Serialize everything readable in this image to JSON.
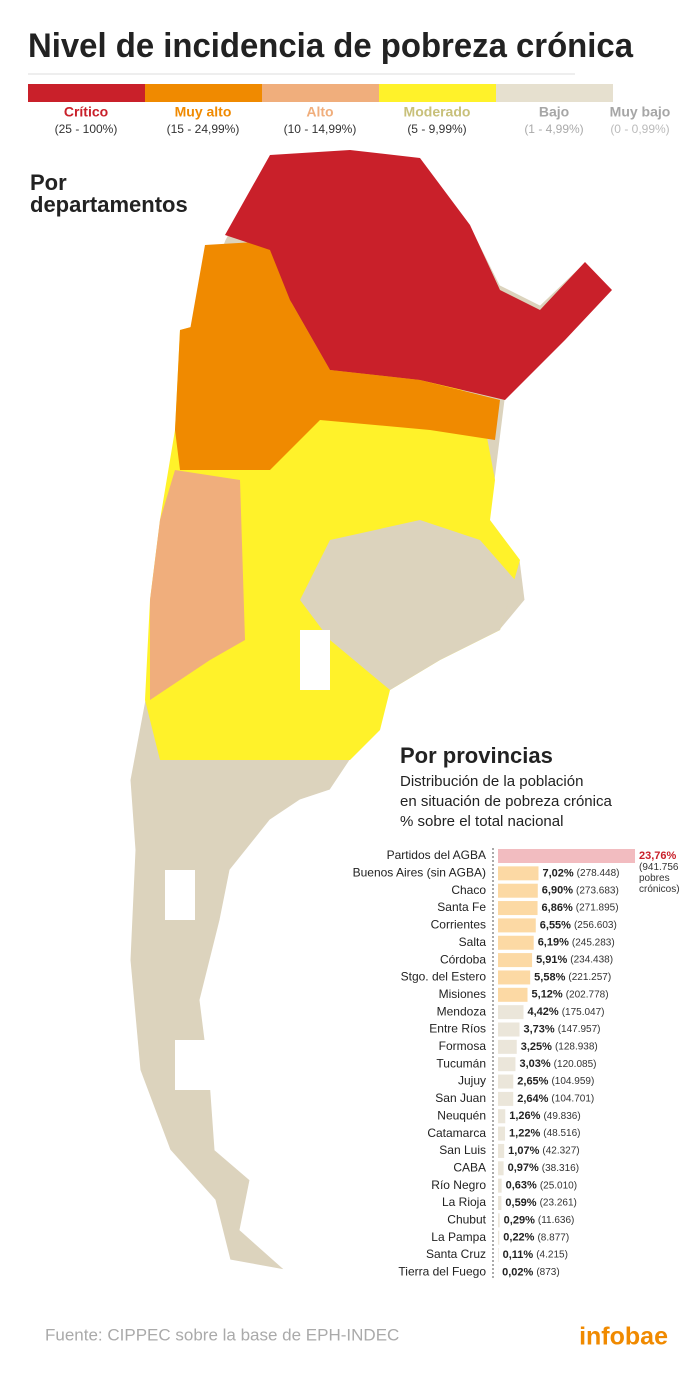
{
  "title": "Nivel de incidencia de pobreza crónica",
  "legend": [
    {
      "label": "Crítico",
      "range": "(25 - 100%)",
      "color": "#c9202a"
    },
    {
      "label": "Muy alto",
      "range": "(15 - 24,99%)",
      "color": "#f08a00"
    },
    {
      "label": "Alto",
      "range": "(10 - 14,99%)",
      "color": "#f0ae7c"
    },
    {
      "label": "Moderado",
      "range": "(5 - 9,99%)",
      "color": "#fff22a"
    },
    {
      "label": "Bajo",
      "range": "(1 - 4,99%)",
      "color": "#e6e0cf"
    },
    {
      "label": "Muy bajo",
      "range": "(0 - 0,99%)",
      "color": "#ffffff"
    }
  ],
  "map_title": [
    "Por",
    "departamentos"
  ],
  "chart_data": {
    "type": "bar",
    "orientation": "horizontal",
    "title": "Por provincias",
    "subtitle": [
      "Distribución de la población",
      "en situación de pobreza crónica",
      "% sobre el total nacional"
    ],
    "categories": [
      "Partidos del AGBA",
      "Buenos Aires (sin AGBA)",
      "Chaco",
      "Santa Fe",
      "Corrientes",
      "Salta",
      "Córdoba",
      "Stgo. del Estero",
      "Misiones",
      "Mendoza",
      "Entre Ríos",
      "Formosa",
      "Tucumán",
      "Jujuy",
      "San Juan",
      "Neuquén",
      "Catamarca",
      "San Luis",
      "CABA",
      "Río Negro",
      "La Rioja",
      "Chubut",
      "La Pampa",
      "Santa Cruz",
      "Tierra del Fuego"
    ],
    "values": [
      23.76,
      7.02,
      6.9,
      6.86,
      6.55,
      6.19,
      5.91,
      5.58,
      5.12,
      4.42,
      3.73,
      3.25,
      3.03,
      2.65,
      2.64,
      1.26,
      1.22,
      1.07,
      0.97,
      0.63,
      0.59,
      0.29,
      0.22,
      0.11,
      0.02
    ],
    "value_labels": [
      "23,76%",
      "7,02%",
      "6,90%",
      "6,86%",
      "6,55%",
      "6,19%",
      "5,91%",
      "5,58%",
      "5,12%",
      "4,42%",
      "3,73%",
      "3,25%",
      "3,03%",
      "2,65%",
      "2,64%",
      "1,26%",
      "1,22%",
      "1,07%",
      "0,97%",
      "0,63%",
      "0,59%",
      "0,29%",
      "0,22%",
      "0,11%",
      "0,02%"
    ],
    "count_labels": [
      "(941.756 pobres crónicos)",
      "(278.448)",
      "(273.683)",
      "(271.895)",
      "(256.603)",
      "(245.283)",
      "(234.438)",
      "(221.257)",
      "(202.778)",
      "(175.047)",
      "(147.957)",
      "(128.938)",
      "(120.085)",
      "(104.959)",
      "(104.701)",
      "(49.836)",
      "(48.516)",
      "(42.327)",
      "(38.316)",
      "(25.010)",
      "(23.261)",
      "(11.636)",
      "(8.877)",
      "(4.215)",
      "(873)"
    ],
    "colors": [
      "#f2bcc0",
      "#fcd9a4",
      "#fcd9a4",
      "#fcd9a4",
      "#fcd9a4",
      "#fcd9a4",
      "#fcd9a4",
      "#fcd9a4",
      "#fcd9a4",
      "#ebe6da",
      "#ebe6da",
      "#ebe6da",
      "#ebe6da",
      "#ebe6da",
      "#ebe6da",
      "#ebe6da",
      "#ebe6da",
      "#ebe6da",
      "#ebe6da",
      "#ebe6da",
      "#ebe6da",
      "#ebe6da",
      "#ebe6da",
      "#ebe6da",
      "#ebe6da"
    ]
  },
  "source": "Fuente: CIPPEC sobre la base de EPH-INDEC",
  "brand": "infobae"
}
